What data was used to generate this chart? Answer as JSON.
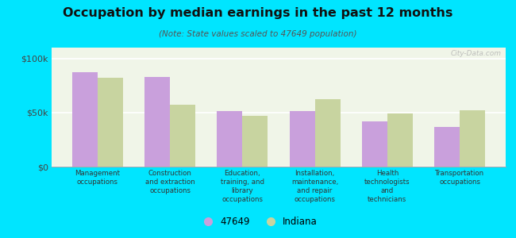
{
  "title": "Occupation by median earnings in the past 12 months",
  "subtitle": "(Note: State values scaled to 47649 population)",
  "categories": [
    "Management\noccupations",
    "Construction\nand extraction\noccupations",
    "Education,\ntraining, and\nlibrary\noccupations",
    "Installation,\nmaintenance,\nand repair\noccupations",
    "Health\ntechnologists\nand\ntechnicians",
    "Transportation\noccupations"
  ],
  "values_47649": [
    87000,
    83000,
    51000,
    51000,
    42000,
    37000
  ],
  "values_indiana": [
    82000,
    57000,
    47000,
    62000,
    49000,
    52000
  ],
  "color_47649": "#c9a0dc",
  "color_indiana": "#c8d4a0",
  "background_outer": "#00e5ff",
  "background_inner": "#f0f5e8",
  "ylim": [
    0,
    110000
  ],
  "yticks": [
    0,
    50000,
    100000
  ],
  "ytick_labels": [
    "$0",
    "$50k",
    "$100k"
  ],
  "legend_label_47649": "47649",
  "legend_label_indiana": "Indiana",
  "watermark": "City-Data.com",
  "bar_width": 0.35
}
